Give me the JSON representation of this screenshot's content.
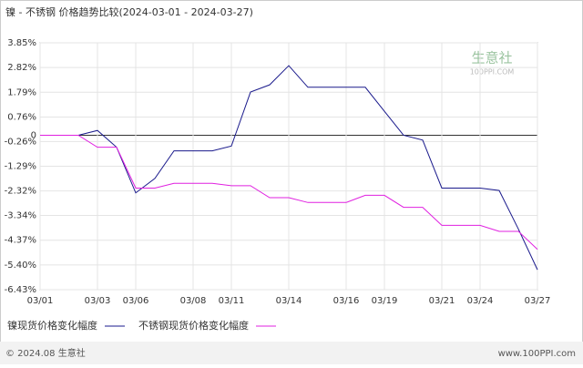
{
  "chart_data": {
    "type": "line",
    "title": "镍 - 不锈钢 价格趋势比较(2024-03-01 - 2024-03-27)",
    "categories": [
      "03/01",
      null,
      null,
      "03/03",
      null,
      "03/06",
      null,
      null,
      "03/08",
      null,
      "03/11",
      null,
      null,
      "03/14",
      null,
      null,
      "03/16",
      null,
      "03/19",
      null,
      null,
      "03/21",
      null,
      "03/24",
      null,
      null,
      "03/27"
    ],
    "series": [
      {
        "name": "镍现货价格变化幅度",
        "color": "#1a1a8c",
        "values": [
          0,
          0,
          0,
          0.2,
          -0.5,
          -2.4,
          -1.8,
          -0.65,
          -0.65,
          -0.65,
          -0.45,
          1.8,
          2.1,
          2.9,
          2.0,
          2.0,
          2.0,
          2.0,
          1.0,
          0.0,
          -0.2,
          -2.2,
          -2.2,
          -2.2,
          -2.3,
          -3.9,
          -5.6
        ]
      },
      {
        "name": "不锈钢现货价格变化幅度",
        "color": "#e020e0",
        "values": [
          0,
          0,
          0,
          -0.5,
          -0.5,
          -2.2,
          -2.2,
          -2.0,
          -2.0,
          -2.0,
          -2.1,
          -2.1,
          -2.6,
          -2.6,
          -2.8,
          -2.8,
          -2.8,
          -2.5,
          -2.5,
          -3.0,
          -3.0,
          -3.75,
          -3.75,
          -3.75,
          -4.0,
          -4.0,
          -4.75
        ]
      }
    ],
    "ylim": [
      -6.43,
      3.85
    ],
    "yticks": [
      {
        "value": 3.85,
        "label": "3.85%"
      },
      {
        "value": 2.82,
        "label": "2.82%"
      },
      {
        "value": 1.79,
        "label": "1.79%"
      },
      {
        "value": 0.76,
        "label": "0.76%"
      },
      0,
      {
        "value": -0.26,
        "label": "-0.26%"
      },
      {
        "value": -1.29,
        "label": "-1.29%"
      },
      {
        "value": -2.32,
        "label": "-2.32%"
      },
      {
        "value": -3.34,
        "label": "-3.34%"
      },
      {
        "value": -4.37,
        "label": "-4.37%"
      },
      {
        "value": -5.4,
        "label": "-5.40%"
      },
      {
        "value": -6.43,
        "label": "-6.43%"
      }
    ],
    "grid": true,
    "watermark": "生意社",
    "watermark_url": "100PPI.COM",
    "footer_left": "© 2024.08 生意社",
    "footer_right": "www.100PPI.com"
  }
}
